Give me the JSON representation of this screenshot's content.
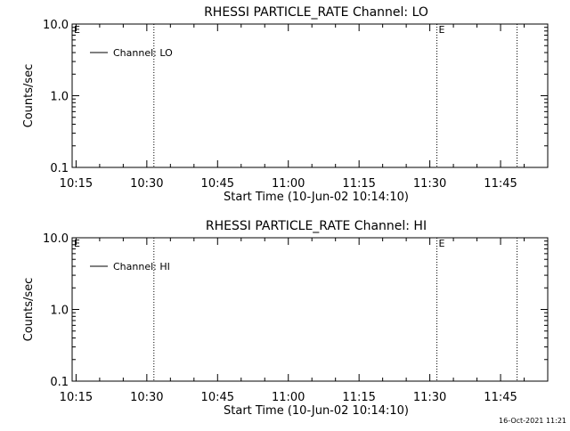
{
  "colors": {
    "background": "#ffffff",
    "foreground": "#000000"
  },
  "footer": {
    "timestamp": "16-Oct-2021 11:21"
  },
  "chart_data": [
    {
      "type": "line",
      "title": "RHESSI PARTICLE_RATE Channel: LO",
      "xlabel": "Start Time (10-Jun-02 10:14:10)",
      "ylabel": "Counts/sec",
      "y_scale": "log",
      "ylim": [
        0.1,
        10.0
      ],
      "y_tick_labels": [
        "0.1",
        "1.0",
        "10.0"
      ],
      "y_tick_values": [
        0.1,
        1.0,
        10.0
      ],
      "xlim": [
        "10:14:10",
        "11:55:00"
      ],
      "x_tick_labels": [
        "10:15",
        "10:30",
        "10:45",
        "11:00",
        "11:15",
        "11:30",
        "11:45"
      ],
      "grid": false,
      "legend_position": "top-left",
      "series": [
        {
          "name": "Channel: LO",
          "x": [],
          "y": []
        }
      ],
      "markers": [
        {
          "time": "10:31:30",
          "label": ""
        },
        {
          "time": "11:31:30",
          "label": "E"
        },
        {
          "time": "11:48:30",
          "label": ""
        }
      ],
      "start_marker_label": "E"
    },
    {
      "type": "line",
      "title": "RHESSI PARTICLE_RATE Channel: HI",
      "xlabel": "Start Time (10-Jun-02 10:14:10)",
      "ylabel": "Counts/sec",
      "y_scale": "log",
      "ylim": [
        0.1,
        10.0
      ],
      "y_tick_labels": [
        "0.1",
        "1.0",
        "10.0"
      ],
      "y_tick_values": [
        0.1,
        1.0,
        10.0
      ],
      "xlim": [
        "10:14:10",
        "11:55:00"
      ],
      "x_tick_labels": [
        "10:15",
        "10:30",
        "10:45",
        "11:00",
        "11:15",
        "11:30",
        "11:45"
      ],
      "grid": false,
      "legend_position": "top-left",
      "series": [
        {
          "name": "Channel: HI",
          "x": [],
          "y": []
        }
      ],
      "markers": [
        {
          "time": "10:31:30",
          "label": ""
        },
        {
          "time": "11:31:30",
          "label": "E"
        },
        {
          "time": "11:48:30",
          "label": ""
        }
      ],
      "start_marker_label": "E"
    }
  ]
}
